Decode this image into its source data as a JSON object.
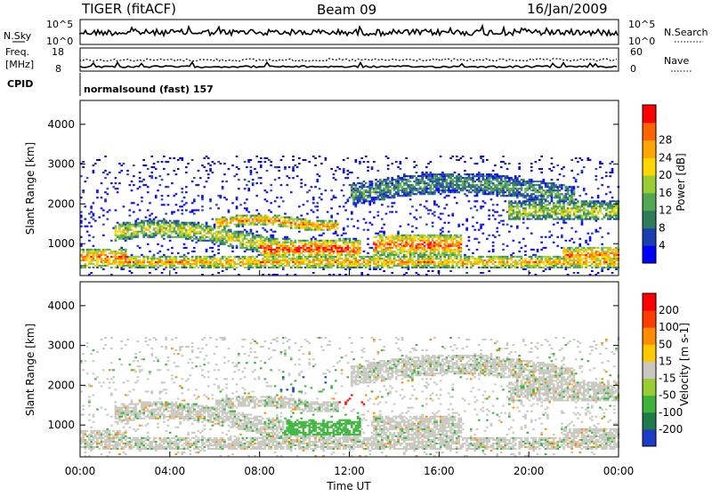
{
  "header": {
    "title": "TIGER (fitACF)",
    "beam": "Beam 09",
    "date": "16/Jan/2009"
  },
  "top_panels": {
    "nsky_label": "N.Sky",
    "nsearch_label": "N.Search",
    "nsky_ticks": [
      "10^5",
      "10^0"
    ],
    "nsearch_ticks": [
      "10^5",
      "10^0"
    ],
    "freq_label": "Freq.",
    "freq_unit": "[MHz]",
    "freq_ticks": [
      "18",
      "8"
    ],
    "nave_label": "Nave",
    "nave_ticks": [
      "60",
      "0"
    ],
    "cpid_label": "CPID",
    "cpid_text": "normalsound (fast) 157"
  },
  "chart_data": [
    {
      "type": "heatmap",
      "name": "power",
      "ylabel": "Slant Range [km]",
      "yticks": [
        "1000",
        "2000",
        "3000",
        "4000"
      ],
      "ylim": [
        200,
        4600
      ],
      "xlim": [
        0,
        24
      ],
      "colorbar_label": "Power [dB]",
      "colorbar_ticks": [
        "4",
        "8",
        "12",
        "16",
        "20",
        "24",
        "28"
      ],
      "colorscale": [
        "#0000ff",
        "#1a3fb0",
        "#2e7b5a",
        "#52a852",
        "#9acd32",
        "#ffd700",
        "#ffa500",
        "#ff6400",
        "#ff0000"
      ]
    },
    {
      "type": "heatmap",
      "name": "velocity",
      "ylabel": "Slant Range [km]",
      "yticks": [
        "1000",
        "2000",
        "3000",
        "4000"
      ],
      "ylim": [
        200,
        4600
      ],
      "xlim": [
        0,
        24
      ],
      "colorbar_label": "Velocity [m s-1]",
      "colorbar_ticks": [
        "200",
        "100",
        "50",
        "15",
        "-15",
        "-50",
        "-100",
        "-200"
      ],
      "colorscale": [
        "#1e3cc8",
        "#1f7a4a",
        "#3cb43c",
        "#9acd32",
        "#c8c8c0",
        "#ffc800",
        "#ff8c00",
        "#ff3c00",
        "#ff0000"
      ]
    }
  ],
  "xaxis": {
    "ticks": [
      "00:00",
      "04:00",
      "08:00",
      "12:00",
      "16:00",
      "20:00",
      "00:00"
    ],
    "label": "Time UT"
  }
}
